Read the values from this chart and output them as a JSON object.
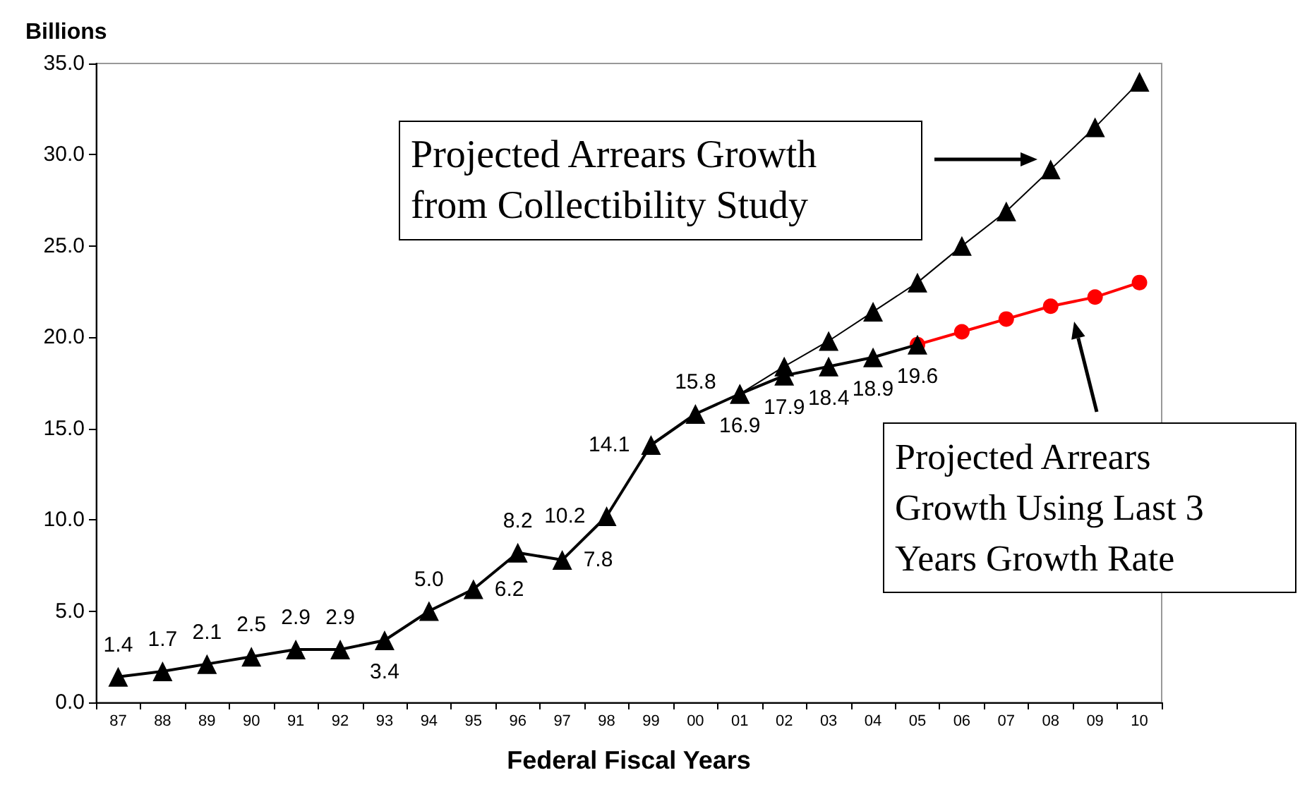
{
  "chart_data": {
    "type": "line",
    "ylabel": "Billions",
    "xlabel": "Federal Fiscal Years",
    "categories": [
      "87",
      "88",
      "89",
      "90",
      "91",
      "92",
      "93",
      "94",
      "95",
      "96",
      "97",
      "98",
      "99",
      "00",
      "01",
      "02",
      "03",
      "04",
      "05",
      "06",
      "07",
      "08",
      "09",
      "10"
    ],
    "series": [
      {
        "color": "#000000",
        "marker": "triangle",
        "values": [
          1.4,
          1.7,
          2.1,
          2.5,
          2.9,
          2.9,
          3.4,
          5.0,
          6.2,
          8.2,
          7.8,
          10.2,
          14.1,
          15.8,
          16.9,
          17.9,
          18.4,
          18.9,
          19.6,
          null,
          null,
          null,
          null,
          null
        ],
        "value_labels": [
          "1.4",
          "1.7",
          "2.1",
          "2.5",
          "2.9",
          "2.9",
          "3.4",
          "5.0",
          "6.2",
          "8.2",
          "7.8",
          "10.2",
          "14.1",
          "15.8",
          "16.9",
          "17.9",
          "18.4",
          "18.9",
          "19.6",
          null,
          null,
          null,
          null,
          null
        ]
      },
      {
        "color": "#000000",
        "marker": "triangle",
        "values": [
          null,
          null,
          null,
          null,
          null,
          null,
          null,
          null,
          null,
          null,
          null,
          null,
          null,
          null,
          16.9,
          18.4,
          19.8,
          21.4,
          23.0,
          25.0,
          26.9,
          29.2,
          31.5,
          34.0
        ]
      },
      {
        "color": "#ff0000",
        "marker": "circle",
        "values": [
          null,
          null,
          null,
          null,
          null,
          null,
          null,
          null,
          null,
          null,
          null,
          null,
          null,
          null,
          null,
          null,
          null,
          null,
          19.6,
          20.3,
          21.0,
          21.7,
          22.2,
          23.0
        ]
      }
    ],
    "ylim": [
      0,
      35
    ],
    "yticks": [
      {
        "value": 0,
        "label": "0.0"
      },
      {
        "value": 5,
        "label": "5.0"
      },
      {
        "value": 10,
        "label": "10.0"
      },
      {
        "value": 15,
        "label": "15.0"
      },
      {
        "value": 20,
        "label": "20.0"
      },
      {
        "value": 25,
        "label": "25.0"
      },
      {
        "value": 30,
        "label": "30.0"
      },
      {
        "value": 35,
        "label": "35.0"
      }
    ],
    "grid": false,
    "annotations": [
      "Projected Arrears Growth\nfrom Collectibility Study",
      "Projected Arrears\nGrowth Using Last 3\nYears Growth Rate"
    ]
  }
}
